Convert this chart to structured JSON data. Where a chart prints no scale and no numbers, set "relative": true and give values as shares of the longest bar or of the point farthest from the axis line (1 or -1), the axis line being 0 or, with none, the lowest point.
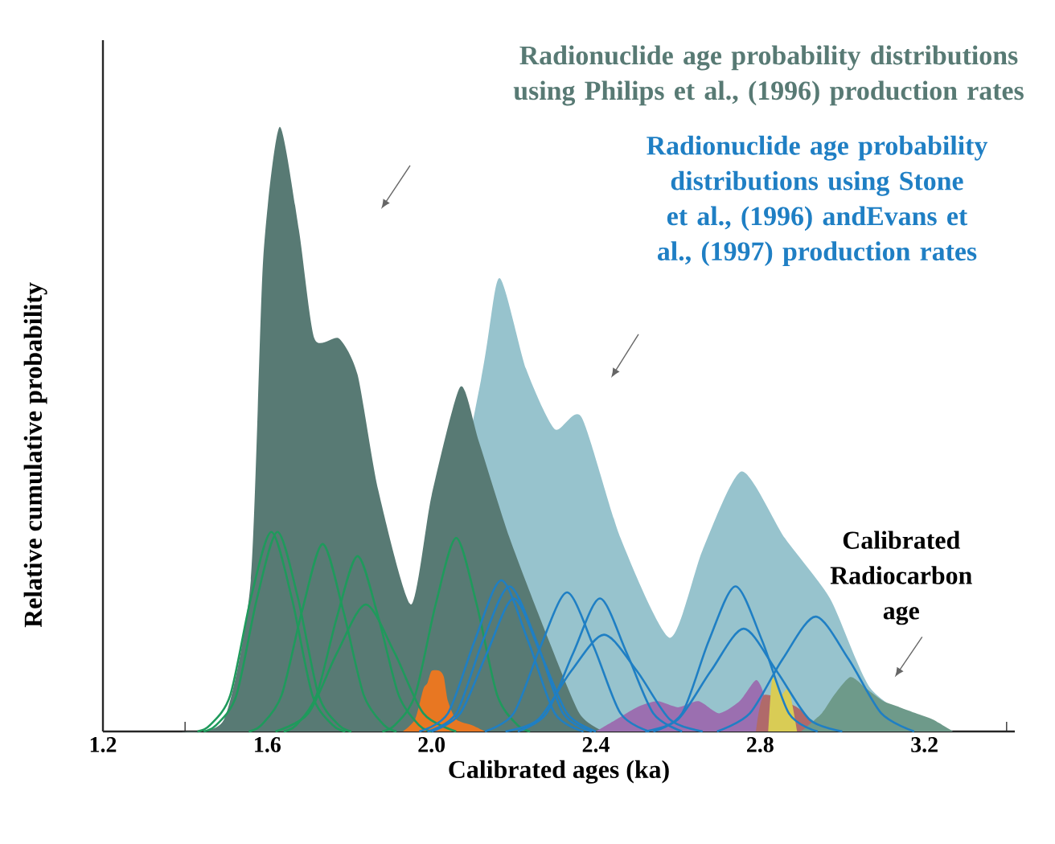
{
  "chart_data": {
    "type": "area",
    "relative": true,
    "xlabel": "Calibrated ages (ka)",
    "ylabel": "Relative cumulative probability",
    "xlim": [
      1.2,
      3.42
    ],
    "xticks": [
      1.2,
      {
        "value": 1.4,
        "label": null
      },
      1.6,
      {
        "value": 1.8,
        "label": null
      },
      {
        "value": 2.0,
        "label": "2.0"
      },
      {
        "value": 2.2,
        "label": null
      },
      2.4,
      {
        "value": 2.6,
        "label": null
      },
      2.8,
      {
        "value": 3.0,
        "label": null
      },
      3.2,
      {
        "value": 3.4,
        "label": null
      }
    ],
    "annotations": [
      {
        "text": "Calibrated Radiocarbon age",
        "x": 3.12,
        "y": 0.05
      }
    ],
    "series": [
      {
        "color": "#97c3cd",
        "x": [
          1.95,
          2.03,
          2.09,
          2.12,
          2.165,
          2.23,
          2.3,
          2.365,
          2.46,
          2.58,
          2.66,
          2.755,
          2.86,
          2.97,
          3.07,
          3.16,
          3.22
        ],
        "values": [
          0,
          null,
          null,
          0.58,
          0.75,
          0.6,
          0.5,
          0.52,
          0.32,
          0.155,
          0.3,
          0.43,
          0.32,
          0.22,
          0.07,
          null,
          0
        ]
      },
      {
        "name": "Radionuclide age probability distributions using Philips et al., (1996) production rates",
        "color": "#587a74",
        "x": [
          1.39,
          1.495,
          1.56,
          1.59,
          1.63,
          1.677,
          1.715,
          1.775,
          1.82,
          1.87,
          1.95,
          2.0,
          2.07,
          2.115,
          2.19,
          2.28,
          2.36,
          2.42
        ],
        "values": [
          0,
          0.02,
          0.25,
          0.78,
          1.0,
          0.83,
          0.65,
          0.65,
          0.59,
          0.4,
          0.21,
          0.39,
          0.57,
          0.48,
          0.32,
          0.16,
          0.03,
          0
        ]
      },
      {
        "color": "#e87722",
        "x": [
          1.93,
          1.96,
          1.98,
          1.99,
          2.0,
          2.02,
          2.03,
          2.04,
          2.06,
          2.1,
          2.13
        ],
        "values": [
          0,
          0.02,
          0.07,
          0.08,
          0.1,
          0.1,
          0.09,
          0.05,
          0.02,
          0.01,
          0
        ]
      },
      {
        "color": "#9b6fb0",
        "x": [
          2.4,
          2.45,
          2.5,
          2.55,
          2.6,
          2.65,
          2.7,
          2.75,
          2.79,
          2.81,
          2.83
        ],
        "values": [
          0,
          0.02,
          0.04,
          0.05,
          0.04,
          0.05,
          0.03,
          0.05,
          0.085,
          0.06,
          0
        ]
      },
      {
        "color": "#b06a6a",
        "x": [
          2.79,
          2.81,
          2.85,
          2.89,
          2.92,
          2.95
        ],
        "values": [
          0,
          0.06,
          null,
          0.04,
          0.02,
          0
        ]
      },
      {
        "color": "#d9cc55",
        "x": [
          2.82,
          2.83,
          2.85,
          2.87,
          2.89
        ],
        "values": [
          0,
          0.09,
          0.06,
          0.07,
          0
        ]
      },
      {
        "color": "#6e9a8a",
        "x": [
          2.9,
          2.95,
          2.98,
          3.02,
          3.06,
          3.1,
          3.14,
          3.18,
          3.22,
          3.27
        ],
        "values": [
          0,
          0.03,
          0.06,
          0.09,
          0.07,
          0.05,
          0.04,
          0.03,
          0.02,
          0
        ]
      },
      {
        "type": "line",
        "color": "#1f9a5c",
        "x": [
          1.43,
          1.46,
          1.51,
          1.56,
          1.61,
          1.66,
          1.71,
          1.76,
          1.79
        ],
        "values": [
          0,
          0.01,
          0.06,
          0.22,
          0.33,
          0.22,
          0.06,
          0.01,
          0
        ]
      },
      {
        "type": "line",
        "color": "#1f9a5c",
        "x": [
          1.445,
          1.475,
          1.525,
          1.575,
          1.625,
          1.675,
          1.725,
          1.775,
          1.805
        ],
        "values": [
          0,
          0.01,
          0.06,
          0.22,
          0.33,
          0.22,
          0.06,
          0.01,
          0
        ]
      },
      {
        "type": "line",
        "color": "#1f9a5c",
        "x": [
          1.555,
          1.585,
          1.635,
          1.685,
          1.735,
          1.785,
          1.835,
          1.885,
          1.915
        ],
        "values": [
          0,
          0.01,
          0.06,
          0.2,
          0.31,
          0.2,
          0.06,
          0.01,
          0
        ]
      },
      {
        "type": "line",
        "color": "#1f9a5c",
        "x": [
          1.64,
          1.67,
          1.72,
          1.77,
          1.82,
          1.87,
          1.92,
          1.97,
          2.0
        ],
        "values": [
          0,
          0.01,
          0.06,
          0.19,
          0.29,
          0.19,
          0.06,
          0.01,
          0
        ]
      },
      {
        "type": "line",
        "color": "#1f9a5c",
        "x": [
          1.62,
          1.7,
          1.77,
          1.84,
          1.91,
          1.98,
          2.06
        ],
        "values": [
          0,
          0.03,
          0.13,
          0.21,
          0.13,
          0.03,
          0
        ]
      },
      {
        "type": "line",
        "color": "#1f9a5c",
        "x": [
          1.88,
          1.91,
          1.96,
          2.01,
          2.06,
          2.11,
          2.16,
          2.21,
          2.24
        ],
        "values": [
          0,
          0.01,
          0.06,
          0.21,
          0.32,
          0.21,
          0.06,
          0.01,
          0
        ]
      },
      {
        "type": "line",
        "name": "Radionuclide age probability distributions using Stone et al., (1996) andEvans et al., (1997) production rates",
        "color": "#1f7fc4",
        "x": [
          1.97,
          2.04,
          2.105,
          2.17,
          2.235,
          2.3,
          2.37
        ],
        "values": [
          0,
          0.03,
          0.15,
          0.25,
          0.15,
          0.03,
          0
        ]
      },
      {
        "type": "line",
        "color": "#1f7fc4",
        "x": [
          1.99,
          2.06,
          2.125,
          2.19,
          2.255,
          2.32,
          2.39
        ],
        "values": [
          0,
          0.03,
          0.15,
          0.24,
          0.15,
          0.03,
          0
        ]
      },
      {
        "type": "line",
        "color": "#1f7fc4",
        "x": [
          2.0,
          2.07,
          2.135,
          2.2,
          2.265,
          2.33,
          2.4
        ],
        "values": [
          0,
          0.03,
          0.13,
          0.22,
          0.13,
          0.03,
          0
        ]
      },
      {
        "type": "line",
        "color": "#1f7fc4",
        "x": [
          2.13,
          2.2,
          2.265,
          2.33,
          2.395,
          2.46,
          2.53
        ],
        "values": [
          0,
          0.03,
          0.14,
          0.23,
          0.14,
          0.03,
          0
        ]
      },
      {
        "type": "line",
        "color": "#1f7fc4",
        "x": [
          2.21,
          2.28,
          2.345,
          2.41,
          2.475,
          2.54,
          2.61
        ],
        "values": [
          0,
          0.03,
          0.13,
          0.22,
          0.13,
          0.03,
          0
        ]
      },
      {
        "type": "line",
        "color": "#1f7fc4",
        "x": [
          2.18,
          2.26,
          2.34,
          2.42,
          2.5,
          2.58,
          2.66
        ],
        "values": [
          0,
          0.02,
          0.1,
          0.16,
          0.1,
          0.02,
          0
        ]
      },
      {
        "type": "line",
        "color": "#1f7fc4",
        "x": [
          2.54,
          2.61,
          2.675,
          2.74,
          2.805,
          2.87,
          2.94
        ],
        "values": [
          0,
          0.03,
          0.15,
          0.24,
          0.15,
          0.03,
          0
        ]
      },
      {
        "type": "line",
        "color": "#1f7fc4",
        "x": [
          2.52,
          2.6,
          2.68,
          2.76,
          2.84,
          2.92,
          3.0
        ],
        "values": [
          0,
          0.02,
          0.1,
          0.17,
          0.1,
          0.02,
          0
        ]
      },
      {
        "type": "line",
        "color": "#1f7fc4",
        "x": [
          2.695,
          2.775,
          2.855,
          2.935,
          3.015,
          3.095,
          3.175
        ],
        "values": [
          0,
          0.03,
          0.12,
          0.19,
          0.12,
          0.03,
          0
        ]
      }
    ]
  }
}
